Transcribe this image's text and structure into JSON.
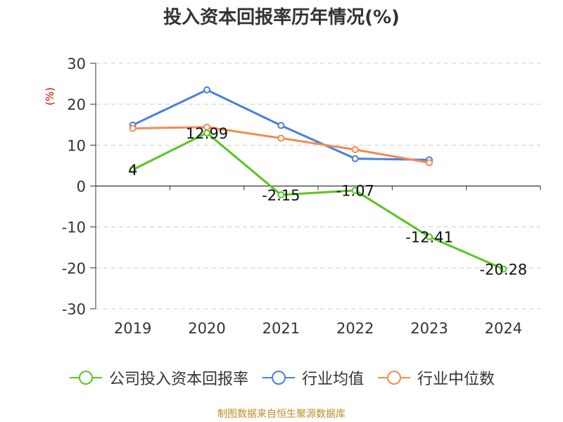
{
  "title": "投入资本回报率历年情况(%)",
  "unit_label": "(%)",
  "source": "制图数据来自恒生聚源数据库",
  "chart_data": {
    "type": "line",
    "title": "投入资本回报率历年情况(%)",
    "ylabel": "(%)",
    "xlabel": "",
    "categories": [
      "2019",
      "2020",
      "2021",
      "2022",
      "2023",
      "2024"
    ],
    "ylim": [
      -30,
      30
    ],
    "yticks": [
      -30,
      -20,
      -10,
      0,
      10,
      20,
      30
    ],
    "grid": true,
    "legend_position": "bottom",
    "series": [
      {
        "name": "公司投入资本回报率",
        "color": "#5ac51e",
        "values": [
          4,
          12.99,
          -2.15,
          -1.07,
          -12.41,
          -20.28
        ],
        "labels": [
          "4",
          "12.99",
          "-2.15",
          "-1.07",
          "-12.41",
          "-20.28"
        ]
      },
      {
        "name": "行业均值",
        "color": "#4a7fdc",
        "values": [
          14.9,
          23.5,
          14.8,
          6.7,
          6.4,
          null
        ]
      },
      {
        "name": "行业中位数",
        "color": "#f58a50",
        "values": [
          14.1,
          14.4,
          11.7,
          8.9,
          5.7,
          null
        ]
      }
    ]
  }
}
